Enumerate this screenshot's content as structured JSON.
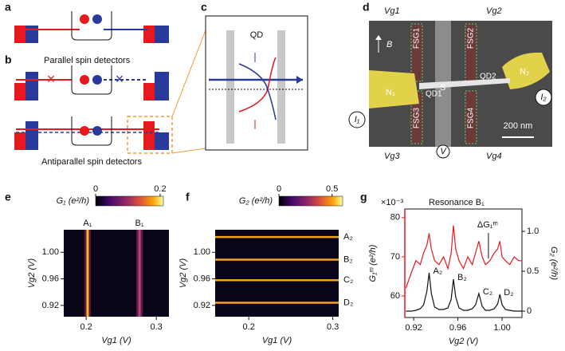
{
  "panel_labels": [
    "a",
    "b",
    "c",
    "d",
    "e",
    "f",
    "g"
  ],
  "diagram": {
    "parallel": "Parallel spin detectors",
    "antiparallel": "Antiparallel spin detectors",
    "qd": "QD",
    "field": "B",
    "gates": [
      "FSG1",
      "FSG2",
      "FSG3",
      "FSG4"
    ],
    "dots": [
      "QD1",
      "QD2"
    ],
    "source": "S",
    "leads": [
      "N₁",
      "N₂"
    ],
    "currents": [
      "I₁",
      "I₂"
    ],
    "voltage": "V",
    "gate_voltages": [
      "Vg1",
      "Vg2",
      "Vg3",
      "Vg4"
    ],
    "scale_bar": "200 nm"
  },
  "chart_data": [
    {
      "type": "heatmap",
      "orientation": "vertical",
      "colorbar_label": "G₁ (e²/h)",
      "colorbar_lim": [
        0,
        0.21
      ],
      "colorbar_ticks": [
        0,
        0.2
      ],
      "xlabel": "Vg1 (V)",
      "ylabel": "Vg2 (V)",
      "xlim": [
        0.168,
        0.318
      ],
      "ylim": [
        0.903,
        1.034
      ],
      "xticks": [
        0.2,
        0.3
      ],
      "yticks": [
        0.92,
        0.96,
        {
          "value": 1,
          "label": "1.00"
        }
      ],
      "peaks": [
        {
          "name": "A₁",
          "position": 0.202
        },
        {
          "name": "B₁",
          "position": 0.276
        }
      ]
    },
    {
      "type": "heatmap",
      "orientation": "horizontal",
      "colorbar_label": "G₂ (e²/h)",
      "colorbar_lim": [
        0,
        0.6
      ],
      "colorbar_ticks": [
        0,
        0.5
      ],
      "xlabel": "Vg1 (V)",
      "ylabel": "Vg2 (V)",
      "xlim": [
        0.16,
        0.307
      ],
      "ylim": [
        0.903,
        1.034
      ],
      "xticks": [
        0.2,
        0.3
      ],
      "yticks": [
        0.92,
        0.96,
        {
          "value": 1,
          "label": "1.00"
        }
      ],
      "peaks": [
        {
          "name": "A₂",
          "position": 1.023
        },
        {
          "name": "B₂",
          "position": 0.989
        },
        {
          "name": "C₂",
          "position": 0.958
        },
        {
          "name": "D₂",
          "position": 0.924
        }
      ]
    },
    {
      "type": "line",
      "title": "Resonance B₁",
      "annotation": "ΔG₁ᵐ",
      "exponent_label": "×10⁻³",
      "xlabel": "Vg2 (V)",
      "ylabel": "G₁ᵐ (e²/h)",
      "y2label": "G₂ (e²/h)",
      "xlim": [
        0.912,
        1.018
      ],
      "ylim": [
        54.5,
        82.2
      ],
      "y2lim": [
        -0.08,
        1.28
      ],
      "xticks": [
        0.92,
        0.96,
        {
          "value": 1,
          "label": "1.00"
        }
      ],
      "yticks": [
        60,
        70,
        80
      ],
      "y2ticks": [
        0,
        0.5,
        {
          "value": 1,
          "label": "1.0"
        }
      ],
      "x": [
        0.913,
        0.918,
        0.922,
        0.926,
        0.929,
        0.932,
        0.934,
        0.936,
        0.939,
        0.943,
        0.947,
        0.951,
        0.954,
        0.956,
        0.958,
        0.961,
        0.965,
        0.969,
        0.973,
        0.976,
        0.979,
        0.982,
        0.985,
        0.989,
        0.993,
        0.996,
        0.998,
        1.0,
        1.003,
        1.007,
        1.011,
        1.015,
        1.018
      ],
      "series": [
        {
          "color": "#e8191e",
          "values": [
            62,
            66,
            69,
            68,
            71,
            73,
            76,
            72,
            69,
            68,
            70,
            67,
            71,
            78,
            72,
            69,
            67,
            70,
            68,
            71,
            74,
            70,
            68,
            69,
            71,
            72,
            74,
            70,
            69,
            68,
            70,
            69,
            69
          ]
        },
        {
          "color": "#111111",
          "axis": "y2",
          "values": [
            0,
            0,
            0.01,
            0.03,
            0.08,
            0.25,
            0.48,
            0.22,
            0.05,
            0.02,
            0.02,
            0.04,
            0.15,
            0.4,
            0.18,
            0.04,
            0.01,
            0.01,
            0.03,
            0.08,
            0.22,
            0.06,
            0.01,
            0.01,
            0.03,
            0.09,
            0.21,
            0.08,
            0.02,
            0.01,
            0,
            0,
            0
          ]
        }
      ],
      "peaks": [
        {
          "label": "A₂",
          "x": 0.934
        },
        {
          "label": "B₂",
          "x": 0.956
        },
        {
          "label": "C₂",
          "x": 0.979
        },
        {
          "label": "D₂",
          "x": 0.998
        }
      ]
    }
  ]
}
